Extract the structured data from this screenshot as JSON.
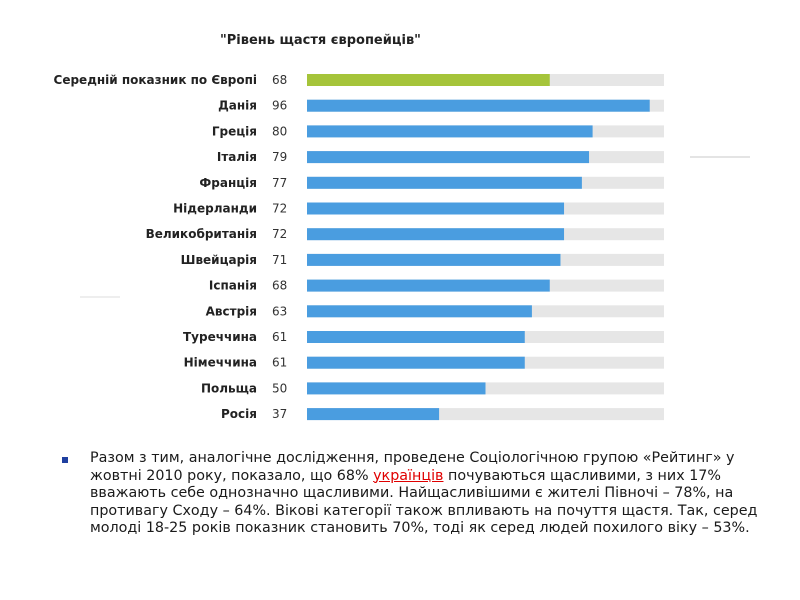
{
  "chart_data": {
    "type": "bar",
    "orientation": "horizontal",
    "title": "\"Рівень щастя європейців\"",
    "categories": [
      "Середній показник по Європі",
      "Данія",
      "Греція",
      "Італія",
      "Франція",
      "Нідерланди",
      "Великобританія",
      "Швейцарія",
      "Іспанія",
      "Австрія",
      "Туреччина",
      "Німеччина",
      "Польща",
      "Росія"
    ],
    "values": [
      68,
      96,
      80,
      79,
      77,
      72,
      72,
      71,
      68,
      63,
      61,
      61,
      50,
      37
    ],
    "value_labels": [
      "68",
      "96",
      "80",
      "79",
      "77",
      "72",
      "72",
      "71",
      "68",
      "63",
      "61",
      "61",
      "50",
      "37"
    ],
    "xlim": [
      0,
      100
    ],
    "grid": false,
    "legend": "none",
    "colors": {
      "highlight": "#a5c43a",
      "bar": "#4a9de0",
      "track": "#e6e6e6"
    }
  },
  "caption": {
    "text_before": "Разом з тим, аналогічне дослідження, проведене Соціологічною групою «Рейтинг» у жовтні 2010 року, показало, що 68% ",
    "link_text": "українців",
    "text_after": " почуваються щасливими, з них 17% вважають себе однозначно щасливими. Найщасливішими є жителі Півночі – 78%, на противагу Сходу – 64%. Вікові категорії також впливають на почуття щастя. Так, серед молоді 18-25 років показник становить 70%, тоді як серед людей похилого віку – 53%."
  }
}
